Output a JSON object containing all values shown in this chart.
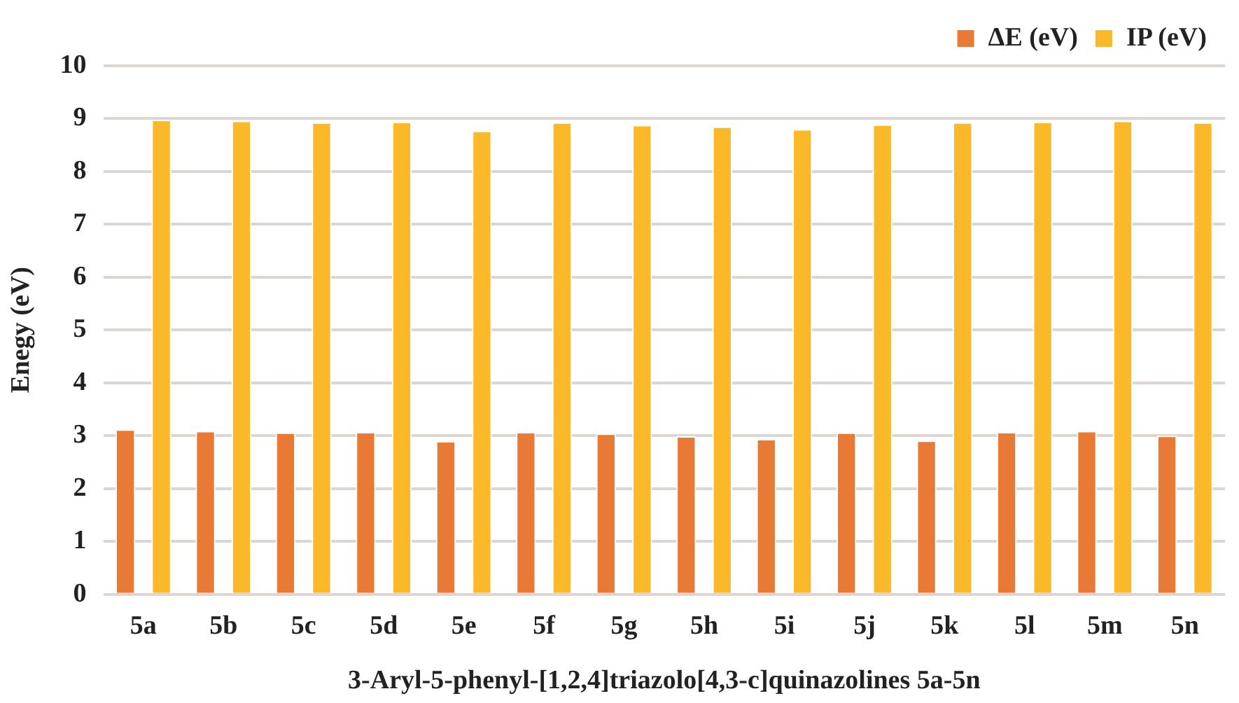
{
  "chart_data": {
    "type": "bar",
    "xlabel": "3-Aryl-5-phenyl-[1,2,4]triazolo[4,3-c]quinazolines 5a-5n",
    "ylabel": "Enegy (eV)",
    "categories": [
      "5a",
      "5b",
      "5c",
      "5d",
      "5e",
      "5f",
      "5g",
      "5h",
      "5i",
      "5j",
      "5k",
      "5l",
      "5m",
      "5n"
    ],
    "series": [
      {
        "name": "ΔE (eV)",
        "color": "#e97a35",
        "values": [
          3.12,
          3.09,
          3.06,
          3.07,
          2.9,
          3.07,
          3.04,
          2.99,
          2.94,
          3.06,
          2.91,
          3.07,
          3.09,
          3.0
        ]
      },
      {
        "name": "IP (eV)",
        "color": "#fbb829",
        "values": [
          8.98,
          8.96,
          8.93,
          8.94,
          8.77,
          8.93,
          8.88,
          8.85,
          8.8,
          8.89,
          8.93,
          8.94,
          8.96,
          8.93
        ]
      }
    ],
    "ylim": [
      0,
      10
    ],
    "yticks": [
      0,
      1,
      2,
      3,
      4,
      5,
      6,
      7,
      8,
      9,
      10
    ],
    "grid": "y",
    "legend": "top right"
  }
}
